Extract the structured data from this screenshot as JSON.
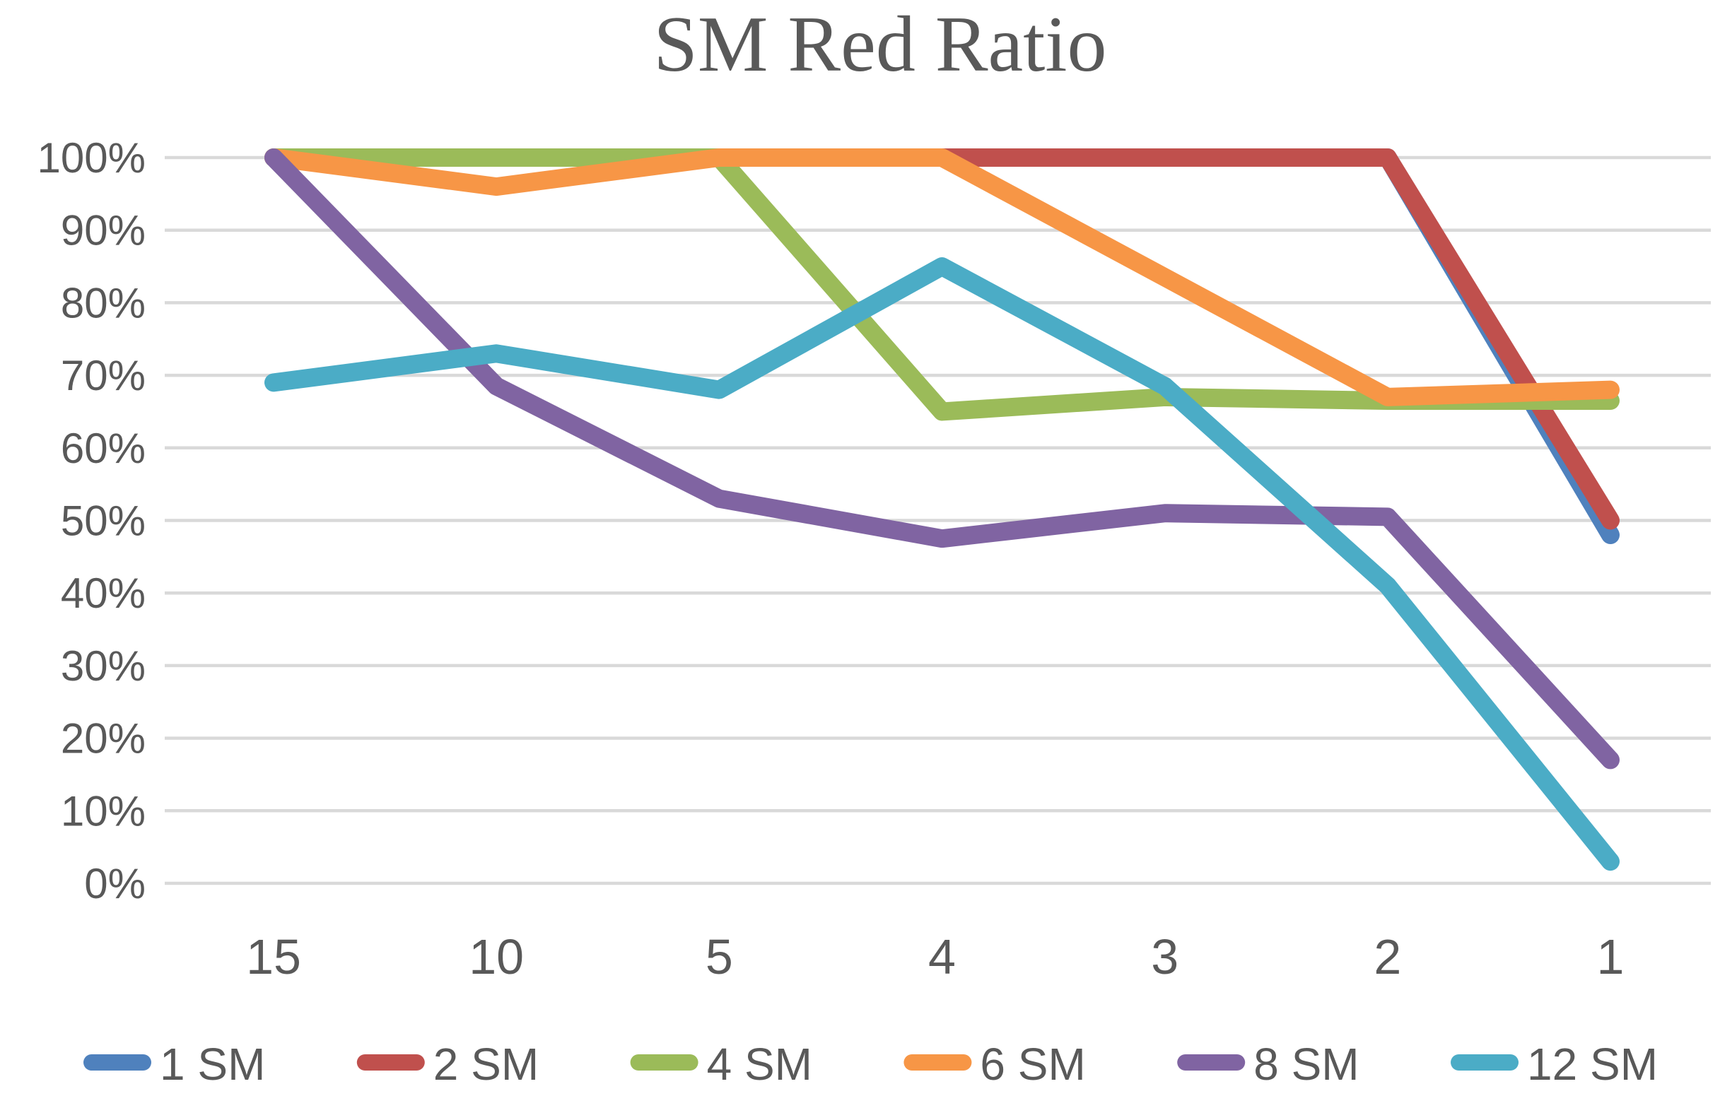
{
  "chart_data": {
    "type": "line",
    "title": "SM Red Ratio",
    "xlabel": "",
    "ylabel": "",
    "x": [
      "15",
      "10",
      "5",
      "4",
      "3",
      "2",
      "1"
    ],
    "y_tick_labels": [
      "0%",
      "10%",
      "20%",
      "30%",
      "40%",
      "50%",
      "60%",
      "70%",
      "80%",
      "90%",
      "100%"
    ],
    "ylim": [
      0,
      100
    ],
    "y_tick_step": 10,
    "grid": true,
    "legend_position": "bottom",
    "series": [
      {
        "name": "1 SM",
        "color": "#4F81BD",
        "values": [
          100,
          100,
          100,
          100,
          100,
          100,
          48
        ]
      },
      {
        "name": "2 SM",
        "color": "#C0504D",
        "values": [
          100,
          100,
          100,
          100,
          100,
          100,
          50
        ]
      },
      {
        "name": "4 SM",
        "color": "#9BBB59",
        "values": [
          100,
          100,
          100,
          65,
          67,
          66.5,
          66.5
        ]
      },
      {
        "name": "6 SM",
        "color": "#F79646",
        "values": [
          100,
          96,
          100,
          100,
          83.5,
          67,
          68
        ]
      },
      {
        "name": "8 SM",
        "color": "#8064A2",
        "values": [
          100,
          68.5,
          53,
          47.5,
          51,
          50.5,
          17
        ]
      },
      {
        "name": "12 SM",
        "color": "#4BACC6",
        "values": [
          69,
          73,
          68,
          85,
          68.5,
          41,
          3
        ]
      }
    ]
  },
  "styles": {
    "text_color": "#595959",
    "grid_color": "#D9D9D9",
    "background": "#FFFFFF",
    "line_width": 26
  }
}
